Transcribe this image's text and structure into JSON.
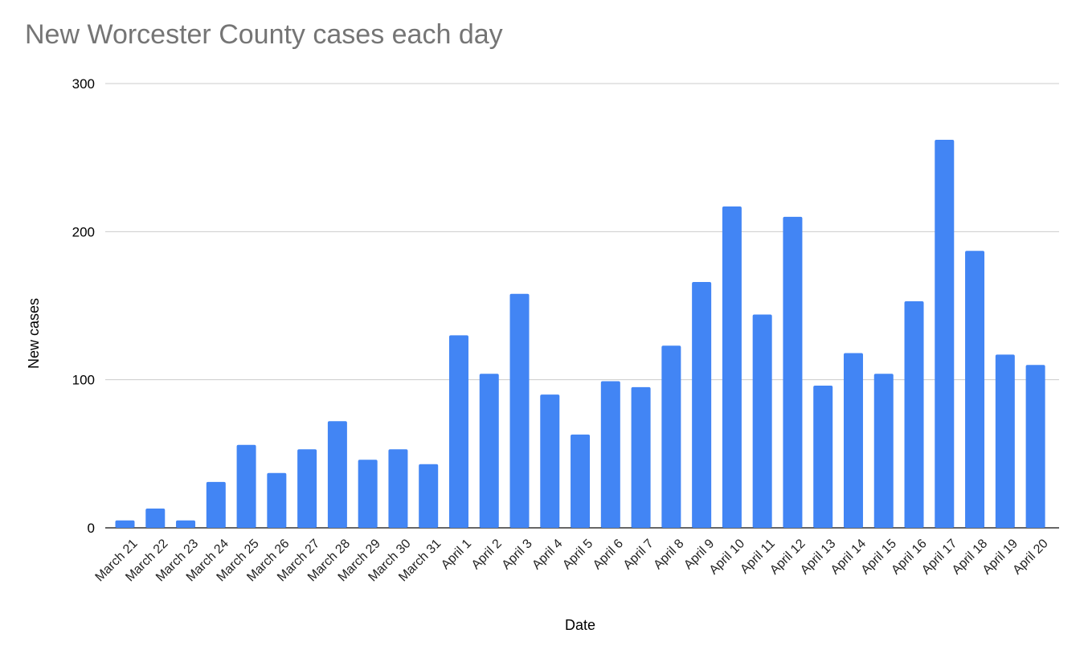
{
  "chart_data": {
    "type": "bar",
    "title": "New Worcester County cases each day",
    "xlabel": "Date",
    "ylabel": "New cases",
    "ylim": [
      0,
      300
    ],
    "yticks": [
      "0",
      "100",
      "200",
      "300"
    ],
    "grid": true,
    "bar_color": "#4285f4",
    "categories": [
      "March 21",
      "March 22",
      "March 23",
      "March 24",
      "March 25",
      "March 26",
      "March 27",
      "March 28",
      "March 29",
      "March 30",
      "March 31",
      "April 1",
      "April 2",
      "April 3",
      "April 4",
      "April 5",
      "April 6",
      "April 7",
      "April 8",
      "April 9",
      "April 10",
      "April 11",
      "April 12",
      "April 13",
      "April 14",
      "April 15",
      "April 16",
      "April 17",
      "April 18",
      "April 19",
      "April 20"
    ],
    "values": [
      5,
      13,
      5,
      31,
      56,
      37,
      53,
      72,
      46,
      53,
      43,
      130,
      104,
      158,
      90,
      63,
      99,
      95,
      123,
      166,
      217,
      144,
      210,
      96,
      118,
      104,
      153,
      262,
      187,
      117,
      110
    ]
  }
}
